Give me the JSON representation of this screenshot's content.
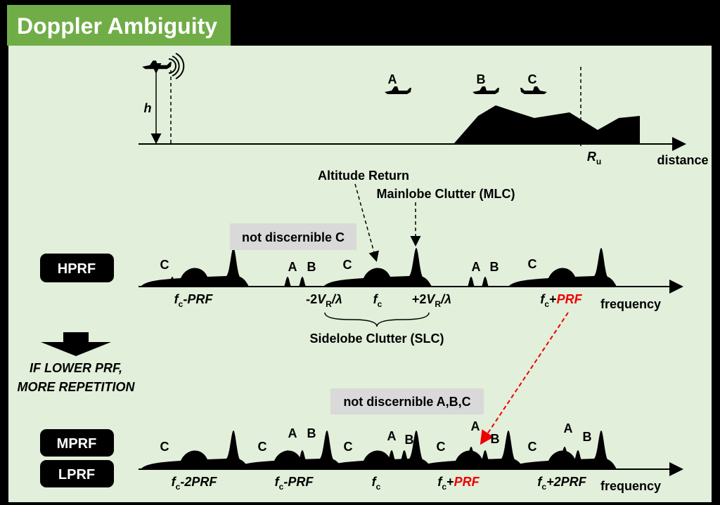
{
  "header": {
    "title": "Doppler Ambiguity"
  },
  "scene": {
    "altitude": "h",
    "targets": [
      "A",
      "B",
      "C"
    ],
    "range": [
      {
        "text": "R",
        "style": "i"
      },
      {
        "text": "u",
        "style": "sub"
      }
    ],
    "axis": "distance"
  },
  "hprf": {
    "badge": "HPRF",
    "note": "not discernible C",
    "callouts": [
      "Altitude Return",
      "Mainlobe Clutter (MLC)"
    ],
    "peaks": [
      "C",
      "A",
      "B",
      "C",
      "A",
      "B",
      "C"
    ],
    "axis_labels": [
      [
        {
          "text": "f",
          "style": "i"
        },
        {
          "text": "c",
          "style": "sub"
        },
        {
          "text": "-PRF",
          "style": "i"
        }
      ],
      [
        {
          "text": "-2",
          "style": ""
        },
        {
          "text": "V",
          "style": "i"
        },
        {
          "text": "R",
          "style": "sub"
        },
        {
          "text": "/λ",
          "style": "i"
        }
      ],
      [
        {
          "text": "f",
          "style": "i"
        },
        {
          "text": "c",
          "style": "sub"
        }
      ],
      [
        {
          "text": "+2",
          "style": ""
        },
        {
          "text": "V",
          "style": "i"
        },
        {
          "text": "R",
          "style": "sub"
        },
        {
          "text": "/λ",
          "style": "i"
        }
      ],
      [
        {
          "text": "f",
          "style": "i"
        },
        {
          "text": "c",
          "style": "sub"
        },
        {
          "text": "+",
          "style": ""
        },
        {
          "text": "PRF",
          "style": "red"
        }
      ]
    ],
    "axis": "frequency",
    "brace": "Sidelobe Clutter (SLC)"
  },
  "transition": [
    "IF LOWER PRF,",
    "MORE REPETITION"
  ],
  "lower": {
    "badges": [
      "MPRF",
      "LPRF"
    ],
    "note": "not discernible A,B,C",
    "peaks": [
      "C",
      "C",
      "A",
      "B",
      "C",
      "A",
      "B",
      "C",
      "A",
      "B",
      "C",
      "A",
      "B"
    ],
    "axis_labels": [
      [
        {
          "text": "f",
          "style": "i"
        },
        {
          "text": "c",
          "style": "sub"
        },
        {
          "text": "-2PRF",
          "style": "i"
        }
      ],
      [
        {
          "text": "f",
          "style": "i"
        },
        {
          "text": "c",
          "style": "sub"
        },
        {
          "text": "-PRF",
          "style": "i"
        }
      ],
      [
        {
          "text": "f",
          "style": "i"
        },
        {
          "text": "c",
          "style": "sub"
        }
      ],
      [
        {
          "text": "f",
          "style": "i"
        },
        {
          "text": "c",
          "style": "sub"
        },
        {
          "text": "+",
          "style": ""
        },
        {
          "text": "PRF",
          "style": "red"
        }
      ],
      [
        {
          "text": "f",
          "style": "i"
        },
        {
          "text": "c",
          "style": "sub"
        },
        {
          "text": "+2PRF",
          "style": "i"
        }
      ]
    ],
    "axis": "frequency"
  }
}
